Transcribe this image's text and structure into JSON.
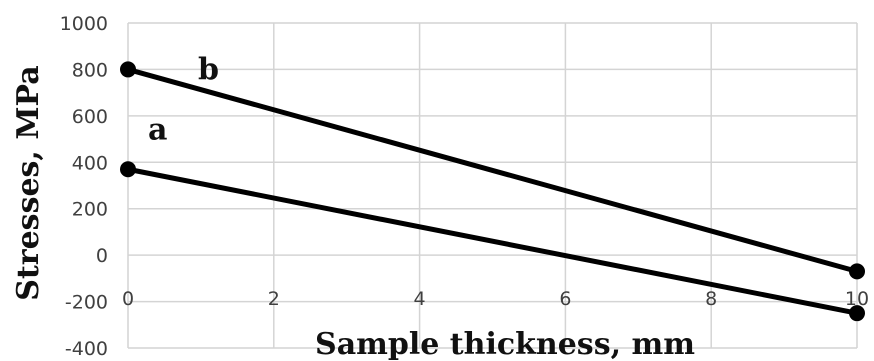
{
  "chart_data": {
    "type": "line",
    "xlabel": "Sample thickness, mm",
    "ylabel": "Stresses, MPa",
    "xlim": [
      0,
      10
    ],
    "ylim": [
      -400,
      1000
    ],
    "x_ticks": [
      "0",
      "2",
      "4",
      "6",
      "8",
      "10"
    ],
    "y_ticks": [
      "1000",
      "800",
      "600",
      "400",
      "200",
      "0",
      "-200",
      "-400"
    ],
    "grid": true,
    "series": [
      {
        "name": "a",
        "x": [
          0,
          10
        ],
        "y": [
          370,
          -250
        ]
      },
      {
        "name": "b",
        "x": [
          0,
          10
        ],
        "y": [
          800,
          -70
        ]
      }
    ]
  }
}
